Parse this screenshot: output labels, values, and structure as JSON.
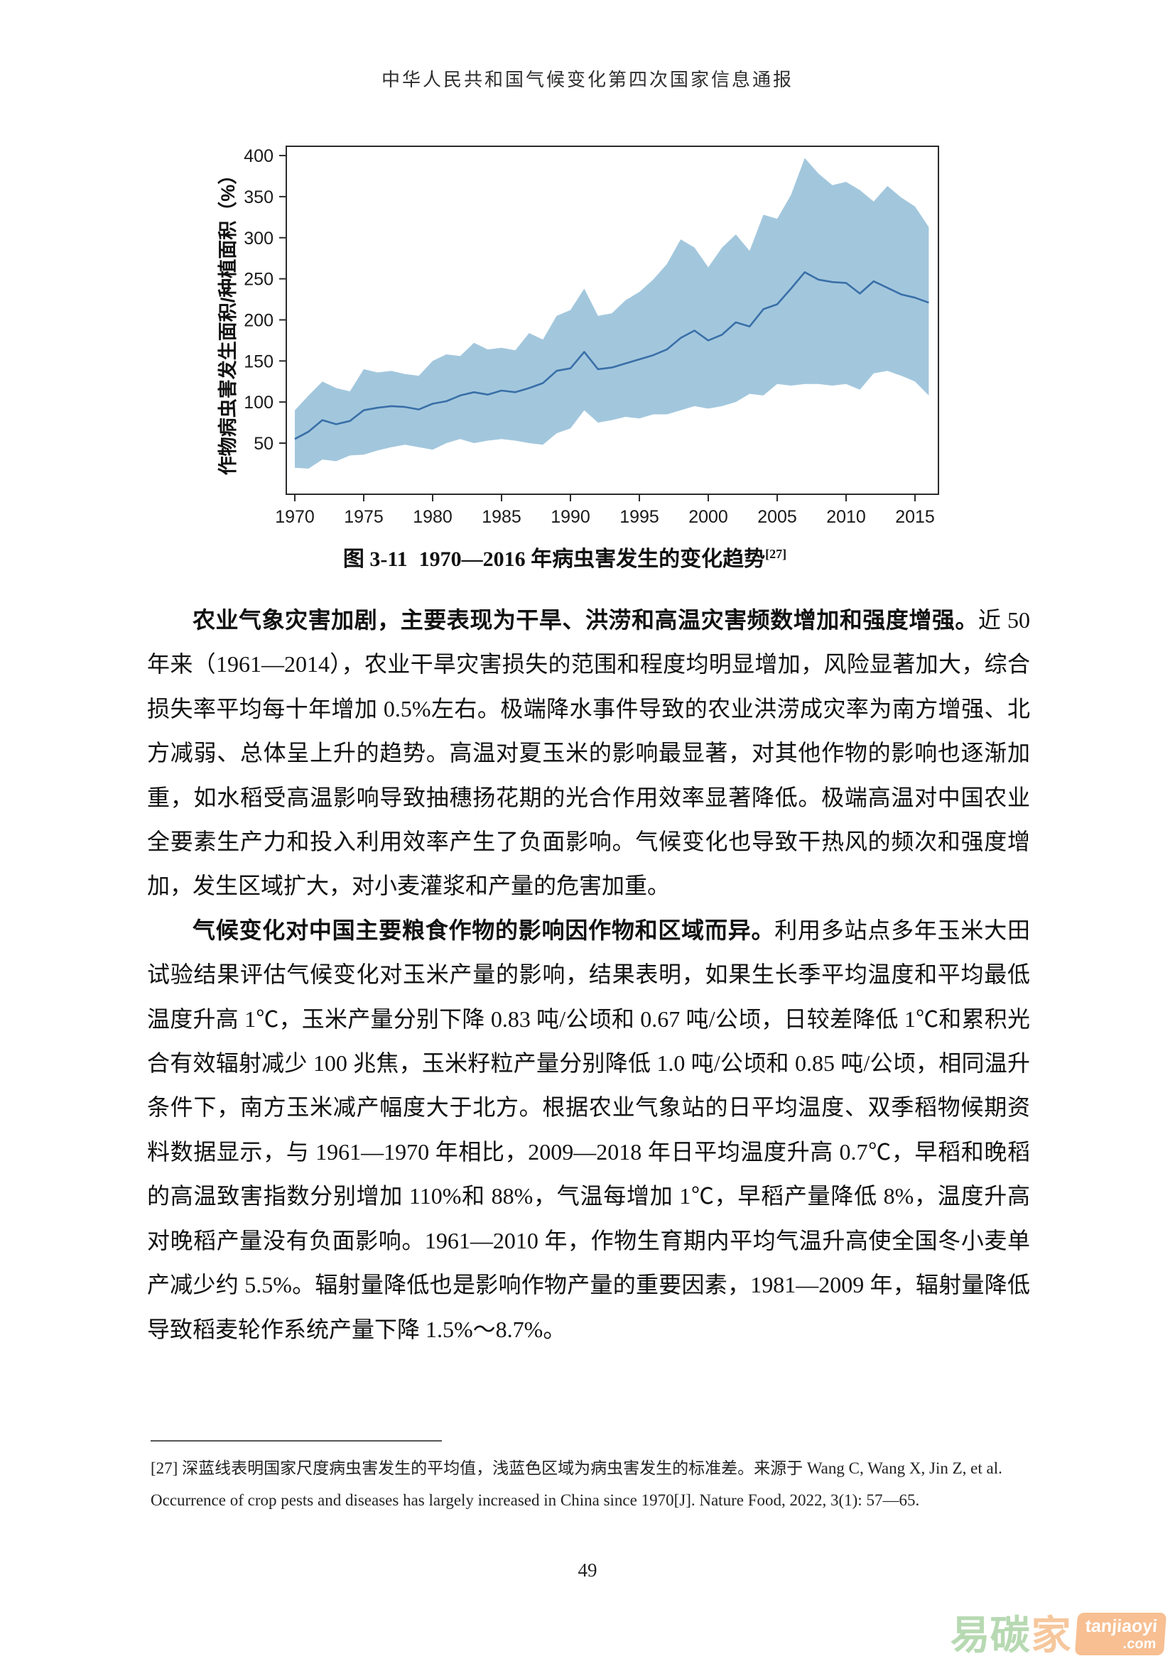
{
  "page": {
    "header": "中华人民共和国气候变化第四次国家信息通报",
    "page_number": "49"
  },
  "figure": {
    "caption_label": "图 3-11",
    "caption_text": "1970—2016 年病虫害发生的变化趋势",
    "caption_ref": "[27]"
  },
  "chart_data": {
    "type": "line",
    "title": "图 3-11 1970—2016 年病虫害发生的变化趋势[27]",
    "xlabel": "",
    "ylabel": "作物病虫害发生面积/种植面积（%）",
    "grid": false,
    "legend_position": "none",
    "band_color": "#a2c7dd",
    "line_color": "#3a6fa8",
    "axis_color": "#2b2b2b",
    "xlim": [
      1969.3,
      2016.8
    ],
    "ylim": [
      0,
      400
    ],
    "xticks": [
      1970,
      1975,
      1980,
      1985,
      1990,
      1995,
      2000,
      2005,
      2010,
      2015
    ],
    "yticks": [
      50,
      100,
      150,
      200,
      250,
      300,
      350,
      400
    ],
    "x": [
      1970,
      1971,
      1972,
      1973,
      1974,
      1975,
      1976,
      1977,
      1978,
      1979,
      1980,
      1981,
      1982,
      1983,
      1984,
      1985,
      1986,
      1987,
      1988,
      1989,
      1990,
      1991,
      1992,
      1993,
      1994,
      1995,
      1996,
      1997,
      1998,
      1999,
      2000,
      2001,
      2002,
      2003,
      2004,
      2005,
      2006,
      2007,
      2008,
      2009,
      2010,
      2011,
      2012,
      2013,
      2014,
      2015,
      2016
    ],
    "series": [
      {
        "name": "国家尺度病虫害发生平均值（深蓝线）",
        "values": [
          55,
          64,
          78,
          73,
          77,
          90,
          93,
          95,
          94,
          91,
          98,
          101,
          108,
          112,
          109,
          114,
          112,
          117,
          123,
          138,
          141,
          161,
          140,
          142,
          147,
          152,
          157,
          164,
          178,
          187,
          175,
          182,
          197,
          192,
          213,
          219,
          238,
          258,
          249,
          246,
          245,
          232,
          247,
          239,
          231,
          227,
          221
        ]
      },
      {
        "name": "标准差上界（浅蓝色区域上缘）",
        "values": [
          90,
          108,
          125,
          117,
          113,
          140,
          136,
          138,
          134,
          132,
          150,
          158,
          156,
          172,
          164,
          166,
          163,
          184,
          176,
          205,
          212,
          238,
          205,
          208,
          224,
          234,
          249,
          268,
          298,
          288,
          264,
          288,
          304,
          284,
          328,
          323,
          352,
          397,
          378,
          364,
          368,
          358,
          344,
          363,
          349,
          338,
          313
        ]
      },
      {
        "name": "标准差下界（浅蓝色区域下缘）",
        "values": [
          20,
          19,
          30,
          28,
          35,
          36,
          41,
          45,
          48,
          45,
          42,
          50,
          55,
          50,
          53,
          55,
          53,
          50,
          48,
          62,
          68,
          90,
          75,
          78,
          82,
          80,
          85,
          85,
          90,
          95,
          92,
          95,
          100,
          110,
          108,
          122,
          120,
          122,
          122,
          120,
          122,
          115,
          135,
          138,
          132,
          125,
          108
        ]
      }
    ]
  },
  "body": {
    "paragraphs": [
      {
        "lead": "农业气象灾害加剧，主要表现为干旱、洪涝和高温灾害频数增加和强度增强。",
        "rest": "近 50 年来（1961—2014），农业干旱灾害损失的范围和程度均明显增加，风险显著加大，综合损失率平均每十年增加 0.5%左右。极端降水事件导致的农业洪涝成灾率为南方增强、北方减弱、总体呈上升的趋势。高温对夏玉米的影响最显著，对其他作物的影响也逐渐加重，如水稻受高温影响导致抽穗扬花期的光合作用效率显著降低。极端高温对中国农业全要素生产力和投入利用效率产生了负面影响。气候变化也导致干热风的频次和强度增加，发生区域扩大，对小麦灌浆和产量的危害加重。"
      },
      {
        "lead": "气候变化对中国主要粮食作物的影响因作物和区域而异。",
        "rest": "利用多站点多年玉米大田试验结果评估气候变化对玉米产量的影响，结果表明，如果生长季平均温度和平均最低温度升高 1℃，玉米产量分别下降 0.83 吨/公顷和 0.67 吨/公顷，日较差降低 1℃和累积光合有效辐射减少 100 兆焦，玉米籽粒产量分别降低 1.0 吨/公顷和 0.85 吨/公顷，相同温升条件下，南方玉米减产幅度大于北方。根据农业气象站的日平均温度、双季稻物候期资料数据显示，与 1961—1970 年相比，2009—2018 年日平均温度升高 0.7℃，早稻和晚稻的高温致害指数分别增加 110%和 88%，气温每增加 1℃，早稻产量降低 8%，温度升高对晚稻产量没有负面影响。1961—2010 年，作物生育期内平均气温升高使全国冬小麦单产减少约 5.5%。辐射量降低也是影响作物产量的重要因素，1981—2009 年，辐射量降低导致稻麦轮作系统产量下降 1.5%～8.7%。"
      }
    ]
  },
  "footnote": {
    "text": "[27]  深蓝线表明国家尺度病虫害发生的平均值，浅蓝色区域为病虫害发生的标准差。来源于 Wang C, Wang X, Jin Z, et al. Occurrence of crop pests and diseases has largely increased in China since 1970[J]. Nature Food, 2022, 3(1): 57—65."
  },
  "watermark": {
    "text_green": "易碳",
    "text_orange": "家",
    "badge_line1": "tanjiaoyi",
    "badge_line2": ".com",
    "green_color": "#b7d9b2",
    "orange_color": "#f6c79d",
    "badge_bg": "#f7bf92"
  }
}
